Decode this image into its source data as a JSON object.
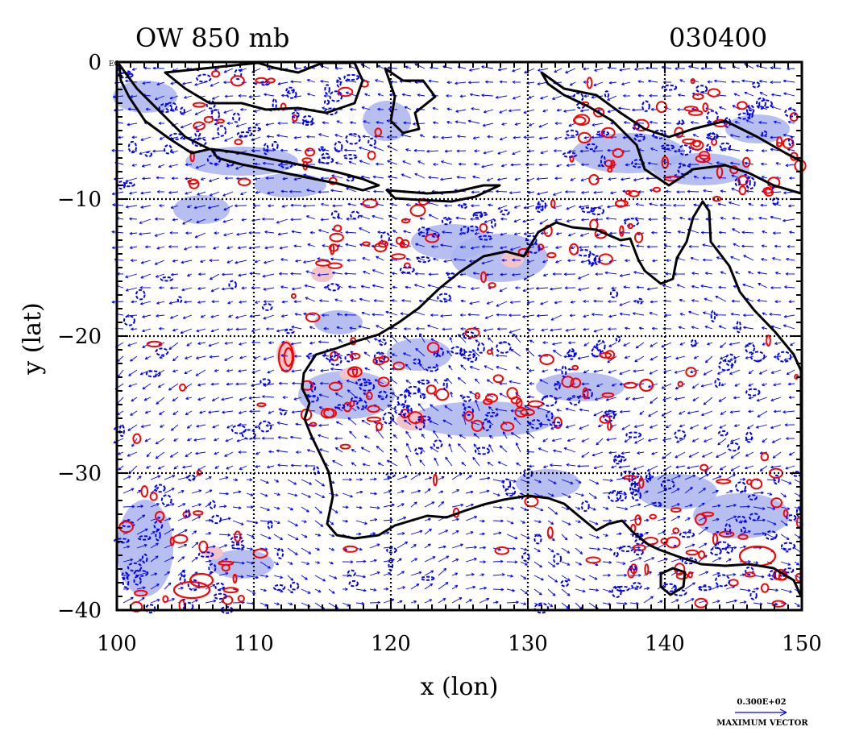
{
  "header": {
    "left_title": "OW 850 mb",
    "right_title": "030400"
  },
  "axes": {
    "xlabel": "x (lon)",
    "ylabel": "y (lat)",
    "x_ticks": [
      "100",
      "110",
      "120",
      "130",
      "140",
      "150"
    ],
    "y_ticks": [
      "0",
      "−10",
      "−20",
      "−30",
      "−40"
    ],
    "eq_label": "EQ",
    "xlim": [
      100,
      150
    ],
    "ylim": [
      -40,
      0
    ]
  },
  "legend": {
    "vector_value": "0.300E+02",
    "vector_label": "MAXIMUM VECTOR"
  },
  "colors": {
    "positive_contour": "#ff0000",
    "positive_fill": "#f2c4c8",
    "negative_contour": "#0000ff",
    "negative_fill": "#aab4ee",
    "coastline": "#000000",
    "wind_vector": "#0000ff",
    "grid": "#000000"
  }
}
